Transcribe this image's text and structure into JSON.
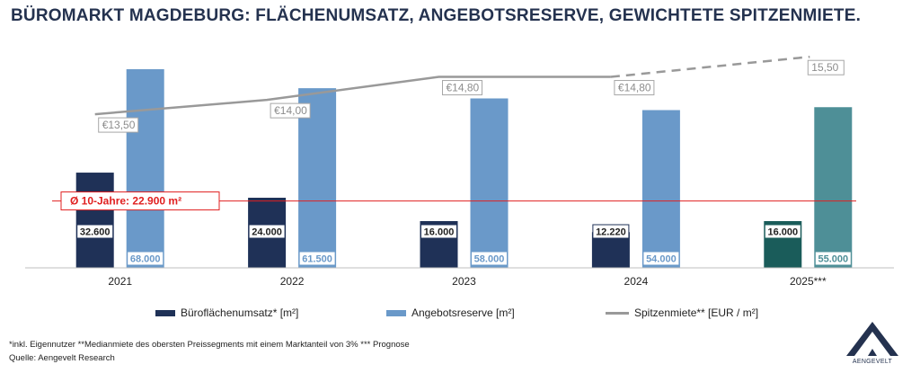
{
  "title": "BÜROMARKT MAGDEBURG: FLÄCHENUMSATZ, ANGEBOTSRESERVE, GEWICHTETE SPITZENMIETE.",
  "chart_data": {
    "type": "bar",
    "categories": [
      "2021",
      "2022",
      "2023",
      "2024",
      "2025***"
    ],
    "series": [
      {
        "name": "Büroflächenumsatz* [m²]",
        "type": "bar",
        "values": [
          32600,
          24000,
          16000,
          12220,
          16000
        ],
        "labels": [
          "32.600",
          "24.000",
          "16.000",
          "12.220",
          "16.000"
        ],
        "color": "#1f3157",
        "forecast_color": "#1a5c5a"
      },
      {
        "name": "Angebotsreserve [m²]",
        "type": "bar",
        "values": [
          68000,
          61500,
          58000,
          54000,
          55000
        ],
        "labels": [
          "68.000",
          "61.500",
          "58.000",
          "54.000",
          "55.000"
        ],
        "color": "#6a99c9",
        "forecast_color": "#4e8f97"
      },
      {
        "name": "Spitzenmiete** [EUR / m²]",
        "type": "line",
        "values": [
          13.5,
          14.0,
          14.8,
          14.8,
          15.5
        ],
        "labels": [
          "€13,50",
          "€14,00",
          "€14,80",
          "€14,80",
          "15,50"
        ],
        "color": "#999999",
        "forecast_style": "dashed"
      }
    ],
    "reference_line": {
      "label": "Ø 10-Jahre: 22.900 m²",
      "value": 22900,
      "color": "#e02020"
    },
    "ylim": [
      0,
      68000
    ],
    "rent_range": [
      12.0,
      15.6
    ],
    "grid": false,
    "legend_position": "bottom"
  },
  "footnote": "*inkl. Eigennutzer **Medianmiete des obersten Preissegments mit einem Marktanteil von 3% *** Prognose",
  "source": "Quelle: Aengevelt Research",
  "logo_text": "AENGEVELT"
}
